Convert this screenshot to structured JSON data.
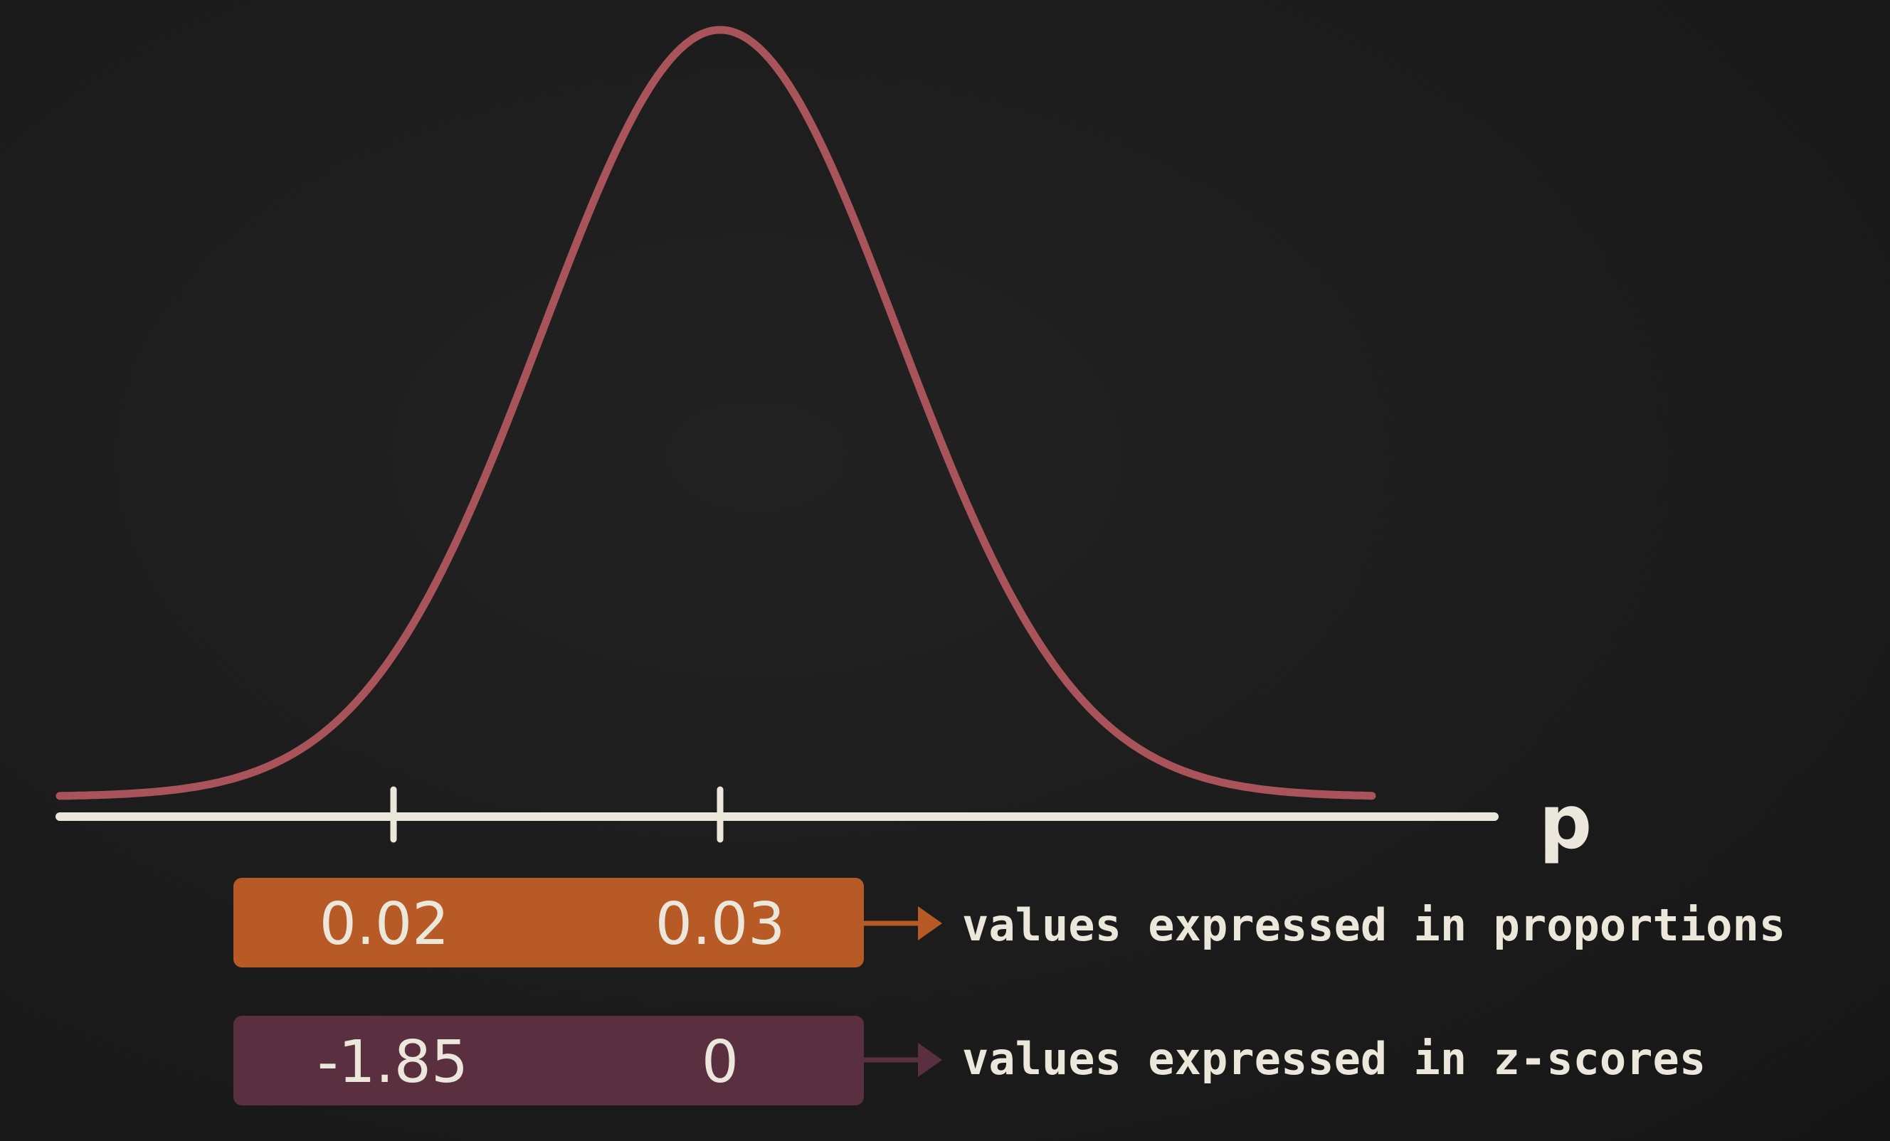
{
  "axis": {
    "label": "p"
  },
  "rows": [
    {
      "values": [
        "0.02",
        "0.03"
      ],
      "note": "values expressed in proportions"
    },
    {
      "values": [
        "-1.85",
        "0"
      ],
      "note": "values expressed in z-scores"
    }
  ],
  "colors": {
    "background": "#1c1c1c",
    "curve": "#a8545a",
    "axis": "#ece7db",
    "proportion_box": "#b85a26",
    "zscore_box": "#5a3041",
    "text": "#ece7db",
    "zscore_arrow": "#5a3041"
  }
}
